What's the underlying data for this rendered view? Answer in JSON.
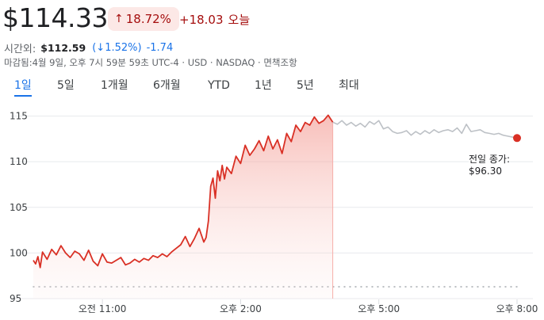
{
  "quote": {
    "price": "$114.33",
    "change_pct": "18.72%",
    "change_abs": "+18.03",
    "period_label": "오늘"
  },
  "after_hours": {
    "label": "시간외:",
    "price": "$112.59",
    "change_pct": "1.52%",
    "change_abs": "-1.74"
  },
  "meta_line": "마감됨:4월 9일, 오후 7시 59분 59초 UTC-4 · USD · NASDAQ · 면책조항",
  "tabs": [
    {
      "label": "1일",
      "active": true
    },
    {
      "label": "5일",
      "active": false
    },
    {
      "label": "1개월",
      "active": false
    },
    {
      "label": "6개월",
      "active": false
    },
    {
      "label": "YTD",
      "active": false
    },
    {
      "label": "1년",
      "active": false
    },
    {
      "label": "5년",
      "active": false
    },
    {
      "label": "최대",
      "active": false
    }
  ],
  "colors": {
    "up_line": "#d93025",
    "after_hours_line": "#bdc1c6",
    "grid": "#e8eaed",
    "accent": "#1a73e8"
  },
  "icons": {
    "up_arrow": "↑",
    "down_arrow": "↓"
  },
  "prev_close": {
    "label": "전일 종가:",
    "value": "$96.30",
    "amount": 96.3
  },
  "chart_data": {
    "type": "line",
    "y_ticks": [
      "115",
      "110",
      "105",
      "100",
      "95"
    ],
    "x_ticks": [
      "오전 11:00",
      "오후 2:00",
      "오후 5:00",
      "오후 8:00"
    ],
    "ylim": [
      95,
      116
    ],
    "x_unit": "hours since 09:30",
    "xlim": [
      0,
      10.5
    ],
    "tick_values_y": [
      115,
      110,
      105,
      100,
      95
    ],
    "tick_values_x": [
      1.5,
      4.5,
      7.5,
      10.5
    ],
    "grid": true,
    "series": [
      {
        "session": "regular",
        "x": [
          0,
          0.05,
          0.1,
          0.15,
          0.2,
          0.3,
          0.4,
          0.5,
          0.6,
          0.7,
          0.8,
          0.9,
          1.0,
          1.1,
          1.2,
          1.3,
          1.4,
          1.5,
          1.6,
          1.7,
          1.8,
          1.9,
          2.0,
          2.1,
          2.2,
          2.3,
          2.4,
          2.5,
          2.6,
          2.7,
          2.8,
          2.9,
          3.0,
          3.1,
          3.2,
          3.3,
          3.4,
          3.5,
          3.6,
          3.7,
          3.75,
          3.8,
          3.85,
          3.9,
          3.95,
          4.0,
          4.05,
          4.1,
          4.15,
          4.2,
          4.3,
          4.4,
          4.5,
          4.6,
          4.7,
          4.8,
          4.9,
          5.0,
          5.1,
          5.2,
          5.3,
          5.4,
          5.5,
          5.6,
          5.7,
          5.8,
          5.9,
          6.0,
          6.1,
          6.2,
          6.3,
          6.4,
          6.5
        ],
        "y": [
          99.2,
          98.8,
          99.6,
          98.4,
          100.1,
          99.3,
          100.4,
          99.8,
          100.8,
          100.0,
          99.5,
          100.2,
          99.9,
          99.2,
          100.3,
          99.1,
          98.6,
          99.9,
          99.0,
          98.9,
          99.2,
          99.5,
          98.7,
          98.9,
          99.3,
          99.0,
          99.4,
          99.2,
          99.7,
          99.5,
          99.9,
          99.6,
          100.1,
          100.5,
          100.9,
          101.8,
          100.7,
          101.6,
          102.7,
          101.2,
          101.7,
          103.5,
          107.3,
          108.2,
          106.0,
          109.0,
          107.9,
          109.6,
          108.1,
          109.4,
          108.7,
          110.6,
          109.8,
          111.8,
          110.7,
          111.4,
          112.3,
          111.2,
          112.8,
          111.4,
          112.4,
          110.9,
          113.1,
          112.2,
          114.0,
          113.3,
          114.3,
          114.0,
          114.9,
          114.2,
          114.5,
          115.1,
          114.33
        ]
      },
      {
        "session": "after_hours",
        "x": [
          6.5,
          6.6,
          6.7,
          6.8,
          6.9,
          7.0,
          7.1,
          7.2,
          7.3,
          7.4,
          7.5,
          7.6,
          7.7,
          7.8,
          7.9,
          8.0,
          8.1,
          8.2,
          8.3,
          8.4,
          8.5,
          8.6,
          8.7,
          8.8,
          8.9,
          9.0,
          9.1,
          9.2,
          9.3,
          9.4,
          9.5,
          9.6,
          9.7,
          9.8,
          9.9,
          10.0,
          10.1,
          10.2,
          10.3,
          10.5
        ],
        "y": [
          114.33,
          114.1,
          114.5,
          114.0,
          114.3,
          113.9,
          114.2,
          113.8,
          114.4,
          114.1,
          114.5,
          113.6,
          113.8,
          113.3,
          113.1,
          113.2,
          113.4,
          112.9,
          113.3,
          113.0,
          113.4,
          113.1,
          113.5,
          113.2,
          113.4,
          113.5,
          113.3,
          113.7,
          113.1,
          114.1,
          113.3,
          113.4,
          113.5,
          113.2,
          113.1,
          113.0,
          113.1,
          112.9,
          112.8,
          112.59
        ]
      }
    ]
  }
}
